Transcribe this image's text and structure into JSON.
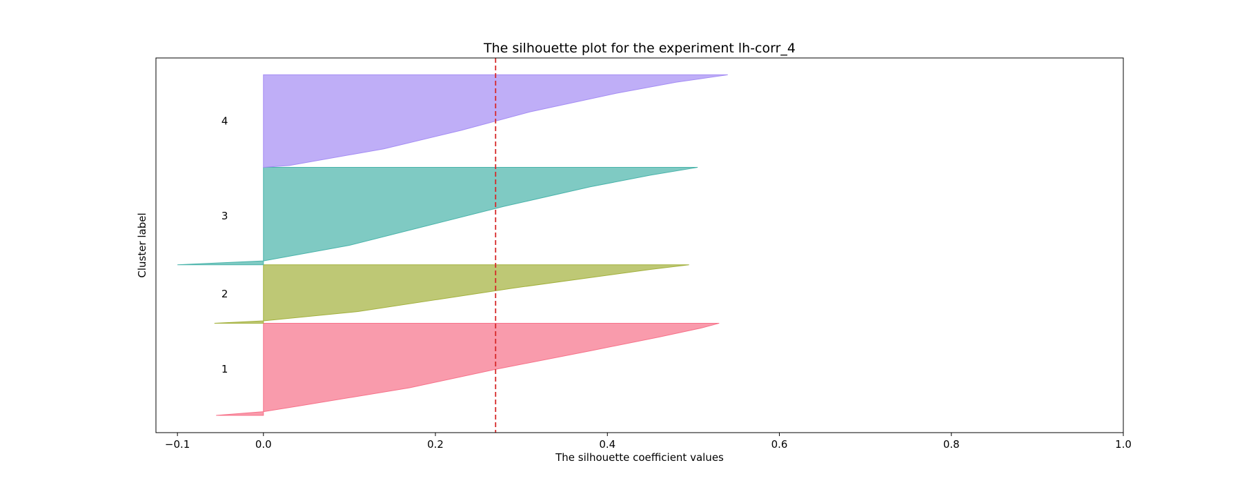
{
  "chart_data": {
    "type": "area",
    "title": "The silhouette plot for the experiment lh-corr_4",
    "xlabel": "The silhouette coefficient values",
    "ylabel": "Cluster label",
    "xlim": [
      -0.125,
      1.0
    ],
    "ylim": [
      0,
      100
    ],
    "xticks": [
      -0.1,
      0.0,
      0.2,
      0.4,
      0.6,
      0.8,
      1.0
    ],
    "xtick_labels": [
      "−0.1",
      "0.0",
      "0.2",
      "0.4",
      "0.6",
      "0.8",
      "1.0"
    ],
    "grid": false,
    "average_silhouette": 0.27,
    "average_line_color": "#d62728",
    "clusters": [
      {
        "label": "1",
        "color": "#f77189",
        "y_range": [
          4.6,
          29.2
        ],
        "profile": [
          [
            0,
            -0.055
          ],
          [
            0.04,
            0.0
          ],
          [
            0.1,
            0.04
          ],
          [
            0.3,
            0.17
          ],
          [
            0.5,
            0.27
          ],
          [
            0.7,
            0.38
          ],
          [
            0.85,
            0.46
          ],
          [
            0.95,
            0.51
          ],
          [
            1.0,
            0.53
          ]
        ]
      },
      {
        "label": "2",
        "color": "#a2b03b",
        "y_range": [
          29.2,
          44.8
        ],
        "profile": [
          [
            0,
            -0.057
          ],
          [
            0.04,
            0.0
          ],
          [
            0.2,
            0.11
          ],
          [
            0.4,
            0.2
          ],
          [
            0.6,
            0.29
          ],
          [
            0.8,
            0.39
          ],
          [
            0.92,
            0.45
          ],
          [
            1.0,
            0.495
          ]
        ]
      },
      {
        "label": "3",
        "color": "#48b3aa",
        "y_range": [
          44.8,
          70.8
        ],
        "profile": [
          [
            0,
            -0.1
          ],
          [
            0.04,
            0.0
          ],
          [
            0.2,
            0.1
          ],
          [
            0.4,
            0.19
          ],
          [
            0.6,
            0.28
          ],
          [
            0.8,
            0.38
          ],
          [
            0.92,
            0.45
          ],
          [
            1.0,
            0.505
          ]
        ]
      },
      {
        "label": "4",
        "color": "#a48cf4",
        "y_range": [
          70.8,
          95.5
        ],
        "profile": [
          [
            0,
            0.0
          ],
          [
            0.02,
            0.03
          ],
          [
            0.2,
            0.14
          ],
          [
            0.4,
            0.23
          ],
          [
            0.6,
            0.31
          ],
          [
            0.8,
            0.41
          ],
          [
            0.92,
            0.48
          ],
          [
            1.0,
            0.54
          ]
        ]
      }
    ]
  }
}
